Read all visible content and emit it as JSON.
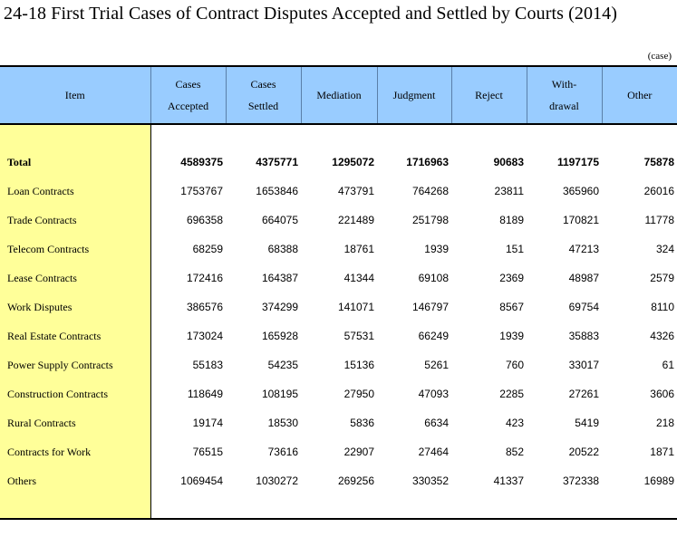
{
  "title": "24-18  First Trial Cases of Contract Disputes Accepted and Settled by Courts (2014)",
  "unit": "(case)",
  "headers": {
    "item": "Item",
    "accepted_l1": "Cases",
    "accepted_l2": "Accepted",
    "settled_l1": "Cases",
    "settled_l2": "Settled",
    "mediation": "Mediation",
    "judgment": "Judgment",
    "reject": "Reject",
    "withdrawal_l1": "With-",
    "withdrawal_l2": "drawal",
    "other": "Other"
  },
  "rows": [
    {
      "item": "Total",
      "accepted": "4589375",
      "settled": "4375771",
      "mediation": "1295072",
      "judgment": "1716963",
      "reject": "90683",
      "withdrawal": "1197175",
      "other": "75878"
    },
    {
      "item": "Loan Contracts",
      "accepted": "1753767",
      "settled": "1653846",
      "mediation": "473791",
      "judgment": "764268",
      "reject": "23811",
      "withdrawal": "365960",
      "other": "26016"
    },
    {
      "item": "Trade Contracts",
      "accepted": "696358",
      "settled": "664075",
      "mediation": "221489",
      "judgment": "251798",
      "reject": "8189",
      "withdrawal": "170821",
      "other": "11778"
    },
    {
      "item": "Telecom Contracts",
      "accepted": "68259",
      "settled": "68388",
      "mediation": "18761",
      "judgment": "1939",
      "reject": "151",
      "withdrawal": "47213",
      "other": "324"
    },
    {
      "item": "Lease Contracts",
      "accepted": "172416",
      "settled": "164387",
      "mediation": "41344",
      "judgment": "69108",
      "reject": "2369",
      "withdrawal": "48987",
      "other": "2579"
    },
    {
      "item": "Work Disputes",
      "accepted": "386576",
      "settled": "374299",
      "mediation": "141071",
      "judgment": "146797",
      "reject": "8567",
      "withdrawal": "69754",
      "other": "8110"
    },
    {
      "item": "Real Estate Contracts",
      "accepted": "173024",
      "settled": "165928",
      "mediation": "57531",
      "judgment": "66249",
      "reject": "1939",
      "withdrawal": "35883",
      "other": "4326"
    },
    {
      "item": "Power Supply Contracts",
      "accepted": "55183",
      "settled": "54235",
      "mediation": "15136",
      "judgment": "5261",
      "reject": "760",
      "withdrawal": "33017",
      "other": "61"
    },
    {
      "item": "Construction Contracts",
      "accepted": "118649",
      "settled": "108195",
      "mediation": "27950",
      "judgment": "47093",
      "reject": "2285",
      "withdrawal": "27261",
      "other": "3606"
    },
    {
      "item": "Rural Contracts",
      "accepted": "19174",
      "settled": "18530",
      "mediation": "5836",
      "judgment": "6634",
      "reject": "423",
      "withdrawal": "5419",
      "other": "218"
    },
    {
      "item": "Contracts for Work",
      "accepted": "76515",
      "settled": "73616",
      "mediation": "22907",
      "judgment": "27464",
      "reject": "852",
      "withdrawal": "20522",
      "other": "1871"
    },
    {
      "item": "Others",
      "accepted": "1069454",
      "settled": "1030272",
      "mediation": "269256",
      "judgment": "330352",
      "reject": "41337",
      "withdrawal": "372338",
      "other": "16989"
    }
  ]
}
